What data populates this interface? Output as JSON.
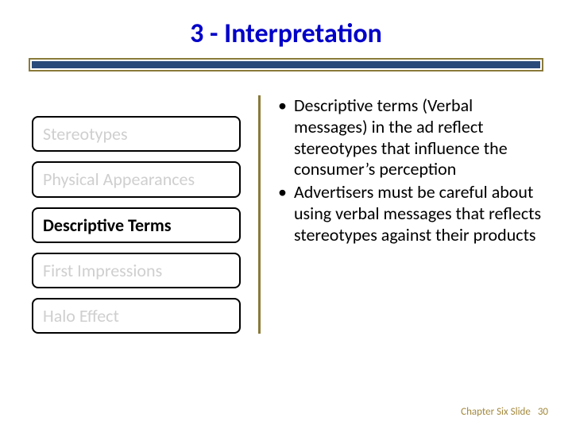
{
  "title": "3 - Interpretation",
  "colors": {
    "title": "#0000c8",
    "ruleBorder": "#8a7a3a",
    "ruleFill": "#2a4a7a",
    "divider": "#8a7a3a",
    "pillBorder": "#000000",
    "pillInactiveText": "#cfcfcf",
    "pillActiveText": "#000000",
    "bodyText": "#000000",
    "footerText": "#a38a3e",
    "background": "#ffffff"
  },
  "typography": {
    "titleSize": 34,
    "pillSize": 22,
    "bodySize": 22,
    "footerSize": 13
  },
  "leftItems": {
    "activeIndex": 2,
    "0": {
      "label": "Stereotypes"
    },
    "1": {
      "label": "Physical Appearances"
    },
    "2": {
      "label": "Descriptive Terms"
    },
    "3": {
      "label": "First Impressions"
    },
    "4": {
      "label": "Halo Effect"
    }
  },
  "bullets": {
    "0": "Descriptive terms (Verbal messages) in the ad reflect stereotypes that influence the consumer’s perception",
    "1": "Advertisers must be careful about using verbal messages that reflects stereotypes against their products"
  },
  "footer": {
    "label": "Chapter Six Slide",
    "number": "30"
  }
}
